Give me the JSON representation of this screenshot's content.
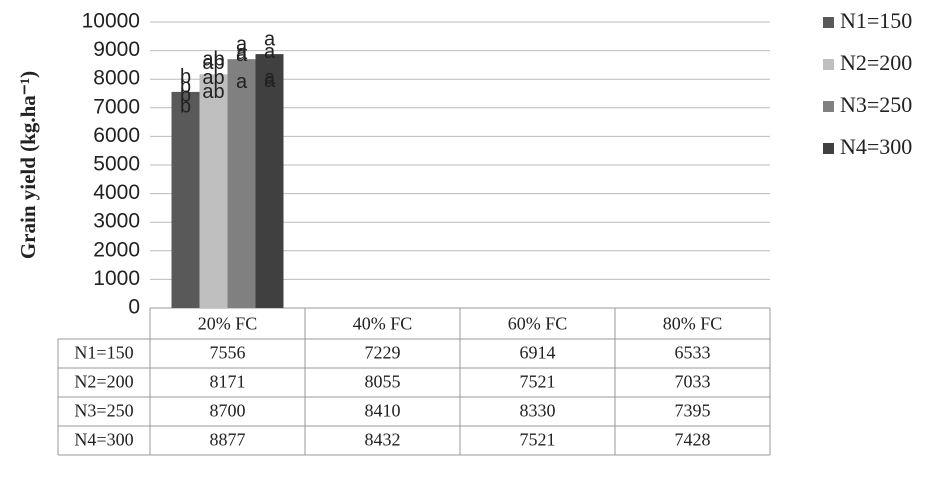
{
  "chart_data": {
    "type": "bar",
    "y_label": "Grain yield (kg.ha⁻¹)",
    "categories": [
      "20% FC",
      "40% FC",
      "60% FC",
      "80% FC"
    ],
    "series": [
      {
        "name": "N1=150",
        "color": "#595959",
        "values": [
          7556,
          7229,
          6914,
          6533
        ],
        "annotations": [
          "b",
          "b",
          "b",
          "b"
        ]
      },
      {
        "name": "N2=200",
        "color": "#bfbfbf",
        "values": [
          8171,
          8055,
          7521,
          7033
        ],
        "annotations": [
          "ab",
          "ab",
          "ab",
          "ab"
        ]
      },
      {
        "name": "N3=250",
        "color": "#808080",
        "values": [
          8700,
          8410,
          8330,
          7395
        ],
        "annotations": [
          "a",
          "a",
          "a",
          "a"
        ]
      },
      {
        "name": "N4=300",
        "color": "#404040",
        "values": [
          8877,
          8432,
          7521,
          7428
        ],
        "annotations": [
          "a",
          "a",
          "a",
          "a"
        ]
      }
    ],
    "ylim": [
      0,
      10000
    ],
    "yticks": [
      0,
      1000,
      2000,
      3000,
      4000,
      5000,
      6000,
      7000,
      8000,
      9000,
      10000
    ],
    "grid": true,
    "legend": "right"
  }
}
